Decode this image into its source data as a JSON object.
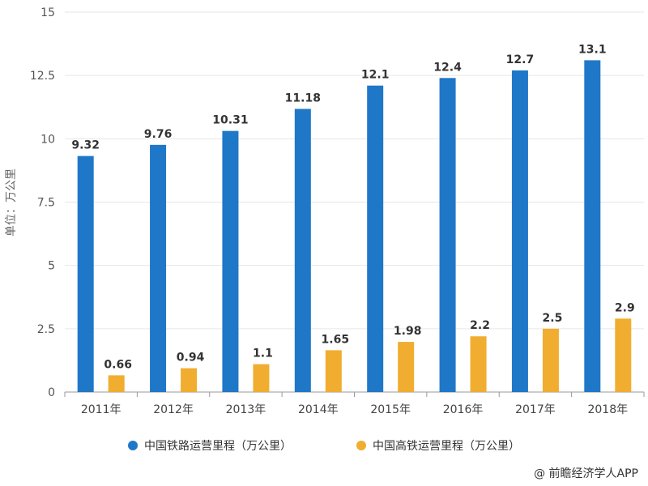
{
  "chart_data": {
    "type": "bar",
    "categories": [
      "2011年",
      "2012年",
      "2013年",
      "2014年",
      "2015年",
      "2016年",
      "2017年",
      "2018年"
    ],
    "series": [
      {
        "name": "中国铁路运营里程（万公里）",
        "values": [
          9.32,
          9.76,
          10.31,
          11.18,
          12.1,
          12.4,
          12.7,
          13.1
        ],
        "labels": [
          "9.32",
          "9.76",
          "10.31",
          "11.18",
          "12.1",
          "12.4",
          "12.7",
          "13.1"
        ],
        "color": "#1f77c8"
      },
      {
        "name": "中国高铁运营里程（万公里）",
        "values": [
          0.66,
          0.94,
          1.1,
          1.65,
          1.98,
          2.2,
          2.5,
          2.9
        ],
        "labels": [
          "0.66",
          "0.94",
          "1.1",
          "1.65",
          "1.98",
          "2.2",
          "2.5",
          "2.9"
        ],
        "color": "#f0ad2f"
      }
    ],
    "ylabel": "单位：万公里",
    "ylim": [
      0,
      15
    ],
    "yticks": [
      0,
      2.5,
      5,
      7.5,
      10,
      12.5,
      15
    ],
    "ytick_labels": [
      "0",
      "2.5",
      "5",
      "7.5",
      "10",
      "12.5",
      "15"
    ],
    "grid": true,
    "legend_position": "bottom"
  },
  "source": "@ 前瞻经济学人APP"
}
